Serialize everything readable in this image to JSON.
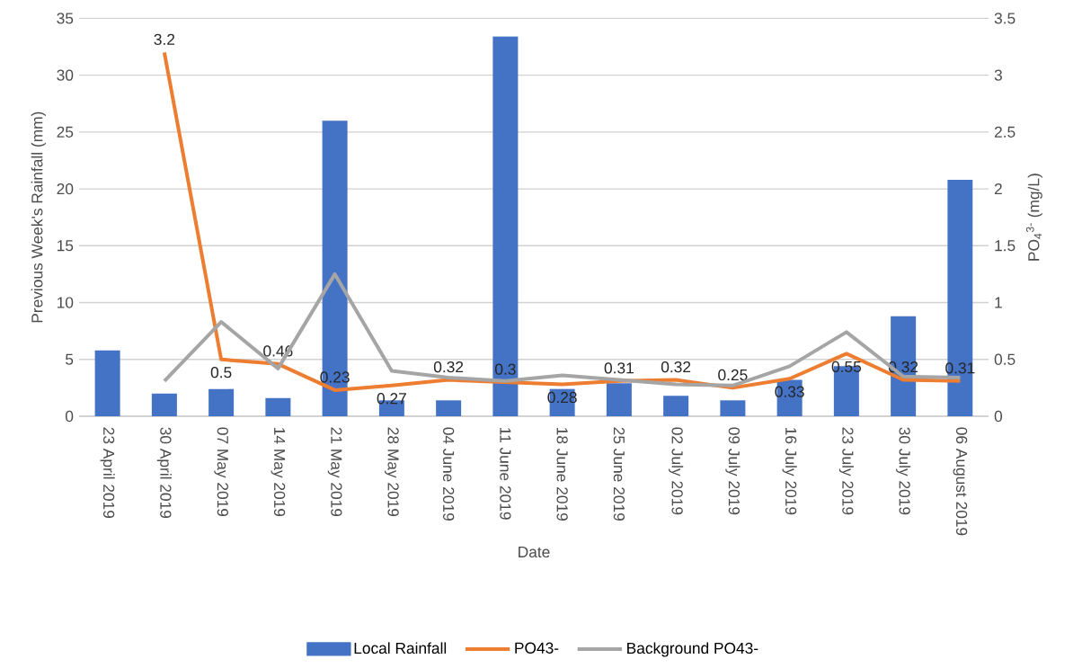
{
  "chart_data": {
    "type": "bar",
    "xlabel": "Date",
    "ylabel": "Previous Week's Rainfall (mm)",
    "y2label": "PO$_{4}$$^{3-}$ (mg/L)",
    "categories": [
      "23 April 2019",
      "30 April 2019",
      "07 May 2019",
      "14 May 2019",
      "21 May 2019",
      "28 May 2019",
      "04 June 2019",
      "11 June 2019",
      "18 June 2019",
      "25 June 2019",
      "02 July 2019",
      "09 July 2019",
      "16 July 2019",
      "23 July 2019",
      "30 July 2019",
      "06 August 2019"
    ],
    "series": [
      {
        "name": "Local Rainfall",
        "color": "#4472c4",
        "values": [
          5.8,
          2.0,
          2.4,
          1.6,
          26,
          1.4,
          1.4,
          33.4,
          2.4,
          2.9,
          1.8,
          1.4,
          3.2,
          4.4,
          8.8,
          20.8
        ]
      },
      {
        "name": "PO43-",
        "type": "line",
        "axis": "y2",
        "color": "#ed7d31",
        "values": [
          null,
          3.2,
          0.5,
          0.46,
          0.23,
          0.27,
          0.32,
          0.3,
          0.28,
          0.31,
          0.32,
          0.25,
          0.33,
          0.55,
          0.32,
          0.31
        ],
        "value_labels": [
          null,
          "3.2",
          "0.5",
          "0.46",
          "0.23",
          "0.27",
          "0.32",
          "0.3",
          "0.28",
          "0.31",
          "0.32",
          "0.25",
          "0.33",
          "0.55",
          "0.32",
          "0.31"
        ]
      },
      {
        "name": "Background PO43-",
        "type": "line",
        "axis": "y2",
        "color": "#a5a5a5",
        "values": [
          null,
          0.31,
          0.83,
          0.42,
          1.25,
          0.4,
          0.34,
          0.31,
          0.36,
          0.32,
          0.28,
          0.27,
          0.44,
          0.74,
          0.35,
          0.34
        ]
      }
    ],
    "ylim": [
      0,
      35
    ],
    "yticks": [
      0,
      5,
      10,
      15,
      20,
      25,
      30,
      35
    ],
    "y2lim": [
      0,
      3.5
    ],
    "y2ticks": [
      0,
      0.5,
      1,
      1.5,
      2,
      2.5,
      3,
      3.5
    ],
    "grid": "y",
    "legend": "bottom"
  }
}
